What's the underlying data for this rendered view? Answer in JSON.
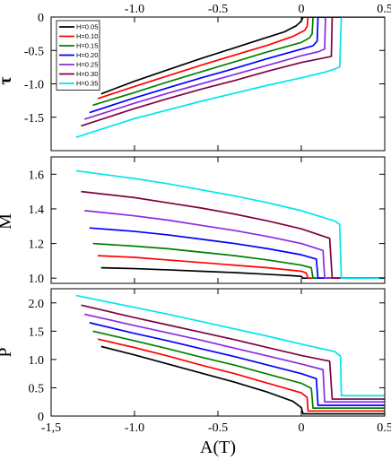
{
  "chart_data": [
    {
      "type": "line",
      "id": "tau",
      "ylabel": "τ",
      "ylabel_style": "bold",
      "xlim": [
        -1.5,
        0.5
      ],
      "ylim": [
        -2.0,
        0.0
      ],
      "x_axis_position": "top",
      "xticks": [
        -1.0,
        -0.5,
        0.0,
        0.5
      ],
      "xtick_labels": [
        "-1.0",
        "-0.5",
        "0",
        "0.5"
      ],
      "yticks": [
        0.0,
        -0.5,
        -1.0,
        -1.5
      ],
      "ytick_labels": [
        "0",
        "-0.5",
        "-1.0",
        "-1.5"
      ],
      "grid": false,
      "legend": {
        "placement": "top-left",
        "entries": [
          {
            "label": "H=0.05",
            "color": "#000000"
          },
          {
            "label": "H=0.10",
            "color": "#ff0000"
          },
          {
            "label": "H=0.15",
            "color": "#008000"
          },
          {
            "label": "H=0.20",
            "color": "#0000ff"
          },
          {
            "label": "H=0.25",
            "color": "#8a2be2"
          },
          {
            "label": "H=0.30",
            "color": "#800040"
          },
          {
            "label": "H=0.35",
            "color": "#00e5ee"
          }
        ]
      },
      "series": [
        {
          "name": "H=0.05",
          "color": "#000000",
          "x": [
            -1.2,
            -1.0,
            -0.8,
            -0.6,
            -0.4,
            -0.25,
            -0.1,
            -0.03,
            0.0,
            0.01,
            0.5
          ],
          "y": [
            -1.15,
            -0.96,
            -0.79,
            -0.62,
            -0.46,
            -0.34,
            -0.22,
            -0.13,
            -0.06,
            0.0,
            0.0
          ]
        },
        {
          "name": "H=0.10",
          "color": "#ff0000",
          "x": [
            -1.22,
            -1.0,
            -0.8,
            -0.6,
            -0.4,
            -0.2,
            -0.05,
            0.02,
            0.035,
            0.04,
            0.5
          ],
          "y": [
            -1.22,
            -1.04,
            -0.88,
            -0.72,
            -0.57,
            -0.42,
            -0.29,
            -0.2,
            -0.14,
            0.0,
            0.0
          ]
        },
        {
          "name": "H=0.15",
          "color": "#008000",
          "x": [
            -1.25,
            -1.0,
            -0.8,
            -0.6,
            -0.4,
            -0.2,
            0.0,
            0.05,
            0.065,
            0.07,
            0.5
          ],
          "y": [
            -1.32,
            -1.13,
            -0.97,
            -0.82,
            -0.67,
            -0.52,
            -0.38,
            -0.31,
            -0.25,
            0.0,
            0.0
          ]
        },
        {
          "name": "H=0.20",
          "color": "#0000ff",
          "x": [
            -1.27,
            -1.0,
            -0.8,
            -0.6,
            -0.4,
            -0.2,
            0.0,
            0.07,
            0.095,
            0.1,
            0.5
          ],
          "y": [
            -1.43,
            -1.21,
            -1.06,
            -0.91,
            -0.77,
            -0.62,
            -0.48,
            -0.43,
            -0.36,
            0.0,
            0.0
          ]
        },
        {
          "name": "H=0.25",
          "color": "#8a2be2",
          "x": [
            -1.3,
            -1.0,
            -0.8,
            -0.6,
            -0.4,
            -0.2,
            0.0,
            0.1,
            0.14,
            0.145,
            0.5
          ],
          "y": [
            -1.53,
            -1.29,
            -1.14,
            -1.0,
            -0.86,
            -0.72,
            -0.58,
            -0.52,
            -0.48,
            0.0,
            0.0
          ]
        },
        {
          "name": "H=0.30",
          "color": "#800040",
          "x": [
            -1.32,
            -1.0,
            -0.8,
            -0.6,
            -0.4,
            -0.2,
            0.0,
            0.12,
            0.18,
            0.185,
            0.5
          ],
          "y": [
            -1.63,
            -1.37,
            -1.22,
            -1.08,
            -0.95,
            -0.81,
            -0.68,
            -0.62,
            -0.59,
            0.0,
            0.0
          ]
        },
        {
          "name": "H=0.35",
          "color": "#00e5ee",
          "x": [
            -1.35,
            -1.0,
            -0.8,
            -0.6,
            -0.4,
            -0.2,
            0.0,
            0.15,
            0.23,
            0.24,
            0.5
          ],
          "y": [
            -1.8,
            -1.52,
            -1.39,
            -1.26,
            -1.14,
            -1.02,
            -0.91,
            -0.82,
            -0.75,
            0.0,
            0.0
          ]
        }
      ]
    },
    {
      "type": "line",
      "id": "M",
      "ylabel": "M",
      "xlim": [
        -1.5,
        0.5
      ],
      "ylim": [
        0.97,
        1.7
      ],
      "yticks": [
        1.0,
        1.2,
        1.4,
        1.6
      ],
      "ytick_labels": [
        "1.0",
        "1.2",
        "1.4",
        "1.6"
      ],
      "grid": false,
      "series": [
        {
          "name": "H=0.05",
          "color": "#000000",
          "x": [
            -1.2,
            -1.0,
            -0.8,
            -0.6,
            -0.4,
            -0.2,
            -0.05,
            0.0,
            0.01,
            0.5
          ],
          "y": [
            1.06,
            1.055,
            1.048,
            1.04,
            1.032,
            1.022,
            1.014,
            1.01,
            1.0,
            1.0
          ]
        },
        {
          "name": "H=0.10",
          "color": "#ff0000",
          "x": [
            -1.22,
            -1.0,
            -0.8,
            -0.6,
            -0.4,
            -0.2,
            0.0,
            0.03,
            0.04,
            0.5
          ],
          "y": [
            1.13,
            1.12,
            1.105,
            1.09,
            1.075,
            1.06,
            1.04,
            1.03,
            1.0,
            1.0
          ]
        },
        {
          "name": "H=0.15",
          "color": "#008000",
          "x": [
            -1.25,
            -1.0,
            -0.8,
            -0.6,
            -0.4,
            -0.2,
            0.0,
            0.06,
            0.07,
            0.5
          ],
          "y": [
            1.2,
            1.185,
            1.17,
            1.15,
            1.13,
            1.105,
            1.075,
            1.06,
            1.0,
            1.0
          ]
        },
        {
          "name": "H=0.20",
          "color": "#0000ff",
          "x": [
            -1.27,
            -1.0,
            -0.8,
            -0.6,
            -0.4,
            -0.2,
            0.0,
            0.09,
            0.1,
            0.5
          ],
          "y": [
            1.29,
            1.27,
            1.25,
            1.225,
            1.2,
            1.17,
            1.135,
            1.11,
            1.0,
            1.0
          ]
        },
        {
          "name": "H=0.25",
          "color": "#8a2be2",
          "x": [
            -1.3,
            -1.0,
            -0.8,
            -0.6,
            -0.4,
            -0.2,
            0.0,
            0.13,
            0.14,
            0.5
          ],
          "y": [
            1.39,
            1.36,
            1.335,
            1.305,
            1.275,
            1.24,
            1.2,
            1.16,
            1.0,
            1.0
          ]
        },
        {
          "name": "H=0.30",
          "color": "#800040",
          "x": [
            -1.32,
            -1.0,
            -0.8,
            -0.6,
            -0.4,
            -0.2,
            0.0,
            0.17,
            0.185,
            0.5
          ],
          "y": [
            1.5,
            1.465,
            1.435,
            1.405,
            1.37,
            1.33,
            1.285,
            1.23,
            1.0,
            1.0
          ]
        },
        {
          "name": "H=0.35",
          "color": "#00e5ee",
          "x": [
            -1.35,
            -1.0,
            -0.8,
            -0.6,
            -0.4,
            -0.2,
            0.0,
            0.2,
            0.23,
            0.24,
            0.5
          ],
          "y": [
            1.62,
            1.575,
            1.545,
            1.51,
            1.475,
            1.435,
            1.39,
            1.33,
            1.31,
            1.0,
            1.0
          ]
        }
      ]
    },
    {
      "type": "line",
      "id": "P",
      "ylabel": "P",
      "xlabel": "A(T)",
      "xlim": [
        -1.5,
        0.5
      ],
      "ylim": [
        0.0,
        2.25
      ],
      "xticks": [
        -1.5,
        -1.0,
        -0.5,
        0.0,
        0.5
      ],
      "xtick_labels": [
        "-1,5",
        "-1.0",
        "-0.5",
        "0",
        "0.5"
      ],
      "yticks": [
        0.0,
        0.5,
        1.0,
        1.5,
        2.0
      ],
      "ytick_labels": [
        "0",
        "0.5",
        "1.0",
        "1.5",
        "2.0"
      ],
      "grid": false,
      "series": [
        {
          "name": "H=0.05",
          "color": "#000000",
          "x": [
            -1.2,
            -1.0,
            -0.8,
            -0.6,
            -0.4,
            -0.2,
            -0.05,
            0.0,
            0.01,
            0.5
          ],
          "y": [
            1.23,
            1.08,
            0.92,
            0.76,
            0.6,
            0.42,
            0.26,
            0.15,
            0.04,
            0.04
          ]
        },
        {
          "name": "H=0.10",
          "color": "#ff0000",
          "x": [
            -1.22,
            -1.0,
            -0.8,
            -0.6,
            -0.4,
            -0.2,
            0.0,
            0.035,
            0.04,
            0.5
          ],
          "y": [
            1.36,
            1.21,
            1.06,
            0.9,
            0.75,
            0.58,
            0.41,
            0.33,
            0.09,
            0.09
          ]
        },
        {
          "name": "H=0.15",
          "color": "#008000",
          "x": [
            -1.25,
            -1.0,
            -0.8,
            -0.6,
            -0.4,
            -0.2,
            0.0,
            0.06,
            0.07,
            0.5
          ],
          "y": [
            1.5,
            1.33,
            1.19,
            1.04,
            0.9,
            0.74,
            0.58,
            0.49,
            0.14,
            0.14
          ]
        },
        {
          "name": "H=0.20",
          "color": "#0000ff",
          "x": [
            -1.27,
            -1.0,
            -0.8,
            -0.6,
            -0.4,
            -0.2,
            0.0,
            0.09,
            0.1,
            0.5
          ],
          "y": [
            1.65,
            1.46,
            1.33,
            1.19,
            1.05,
            0.9,
            0.75,
            0.66,
            0.19,
            0.19
          ]
        },
        {
          "name": "H=0.25",
          "color": "#8a2be2",
          "x": [
            -1.3,
            -1.0,
            -0.8,
            -0.6,
            -0.4,
            -0.2,
            0.0,
            0.13,
            0.14,
            0.5
          ],
          "y": [
            1.8,
            1.6,
            1.47,
            1.34,
            1.2,
            1.06,
            0.92,
            0.82,
            0.25,
            0.25
          ]
        },
        {
          "name": "H=0.30",
          "color": "#800040",
          "x": [
            -1.32,
            -1.0,
            -0.8,
            -0.6,
            -0.4,
            -0.2,
            0.0,
            0.17,
            0.185,
            0.5
          ],
          "y": [
            1.96,
            1.74,
            1.61,
            1.48,
            1.35,
            1.21,
            1.07,
            0.97,
            0.3,
            0.3
          ]
        },
        {
          "name": "H=0.35",
          "color": "#00e5ee",
          "x": [
            -1.35,
            -1.0,
            -0.8,
            -0.6,
            -0.4,
            -0.2,
            0.0,
            0.2,
            0.235,
            0.24,
            0.5
          ],
          "y": [
            2.13,
            1.92,
            1.8,
            1.67,
            1.54,
            1.41,
            1.27,
            1.14,
            1.06,
            0.36,
            0.36
          ]
        }
      ]
    }
  ]
}
